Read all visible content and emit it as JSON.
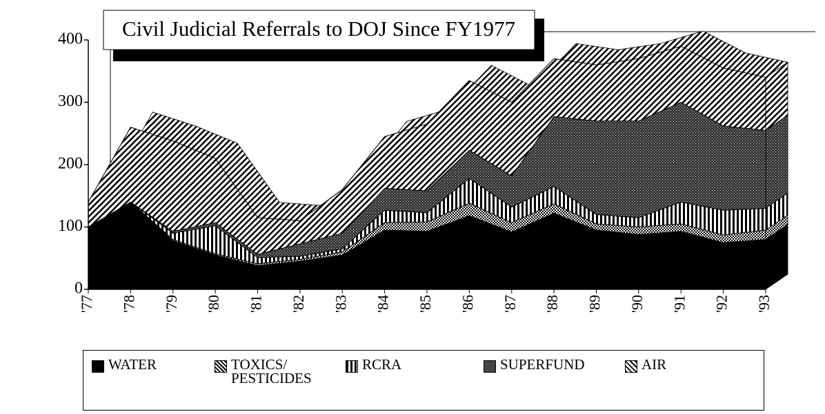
{
  "chart_data": {
    "type": "area",
    "stacked": true,
    "title": "Civil Judicial Referrals to DOJ Since FY1977",
    "categories": [
      "'77",
      "'78",
      "'79",
      "'80",
      "'81",
      "'82",
      "'83",
      "'84",
      "'85",
      "'86",
      "'87",
      "'88",
      "'89",
      "'90",
      "'91",
      "'92",
      "'93"
    ],
    "series": [
      {
        "name": "WATER",
        "color": "#000000",
        "pattern": "solid",
        "values": [
          100,
          140,
          78,
          55,
          38,
          45,
          55,
          95,
          93,
          118,
          92,
          122,
          95,
          88,
          93,
          75,
          80
        ]
      },
      {
        "name": "TOXICS/ PESTICIDES",
        "color": "#000000",
        "pattern": "dots",
        "values": [
          0,
          0,
          2,
          2,
          3,
          3,
          5,
          12,
          15,
          20,
          15,
          15,
          10,
          12,
          12,
          12,
          15
        ]
      },
      {
        "name": "RCRA",
        "color": "#000000",
        "pattern": "vstripes",
        "values": [
          0,
          0,
          10,
          45,
          10,
          5,
          5,
          20,
          15,
          40,
          25,
          28,
          15,
          15,
          35,
          40,
          35
        ]
      },
      {
        "name": "SUPERFUND",
        "color": "#000000",
        "pattern": "crosshatch",
        "values": [
          0,
          0,
          3,
          5,
          5,
          20,
          25,
          35,
          35,
          45,
          50,
          112,
          150,
          155,
          160,
          135,
          125
        ]
      },
      {
        "name": "AIR",
        "color": "#000000",
        "pattern": "diagonal",
        "values": [
          40,
          120,
          145,
          103,
          59,
          37,
          70,
          83,
          107,
          112,
          118,
          93,
          90,
          100,
          90,
          93,
          85
        ]
      }
    ],
    "ylim": [
      0,
      400
    ],
    "yticks": [
      0,
      100,
      200,
      300,
      400
    ]
  }
}
